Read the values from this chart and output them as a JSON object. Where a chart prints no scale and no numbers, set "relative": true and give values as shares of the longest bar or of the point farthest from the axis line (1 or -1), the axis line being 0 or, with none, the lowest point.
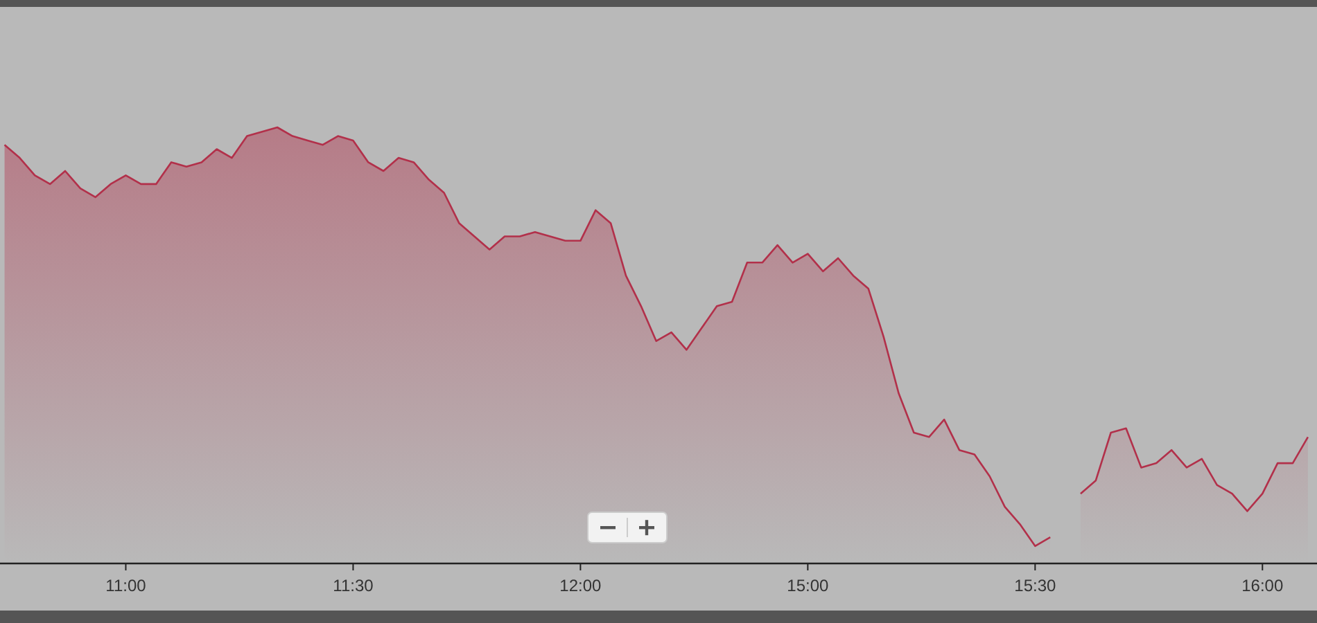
{
  "chart_data": {
    "type": "area",
    "relative": true,
    "categories": [
      null,
      null,
      null,
      null,
      null,
      null,
      null,
      null,
      "11:00",
      null,
      null,
      null,
      null,
      null,
      null,
      null,
      null,
      null,
      null,
      null,
      null,
      null,
      null,
      "11:30",
      null,
      null,
      null,
      null,
      null,
      null,
      null,
      null,
      null,
      null,
      null,
      null,
      null,
      null,
      "12:00",
      null,
      null,
      null,
      null,
      null,
      null,
      null,
      null,
      null,
      null,
      null,
      null,
      null,
      null,
      "15:00",
      null,
      null,
      null,
      null,
      null,
      null,
      null,
      null,
      null,
      null,
      null,
      null,
      null,
      null,
      "15:30",
      null,
      null,
      null,
      null,
      null,
      null,
      null,
      null,
      null,
      null,
      null,
      null,
      null,
      null,
      "16:00",
      null,
      null,
      null
    ],
    "series": [
      {
        "color": "#b2304a",
        "values": [
          0.96,
          0.93,
          0.89,
          0.87,
          0.9,
          0.86,
          0.84,
          0.87,
          0.89,
          0.87,
          0.87,
          0.92,
          0.91,
          0.92,
          0.95,
          0.93,
          0.98,
          0.99,
          1,
          0.98,
          0.97,
          0.96,
          0.98,
          0.97,
          0.92,
          0.9,
          0.93,
          0.92,
          0.88,
          0.85,
          0.78,
          0.75,
          0.72,
          0.75,
          0.75,
          0.76,
          0.75,
          0.74,
          0.74,
          0.81,
          0.78,
          0.66,
          0.59,
          0.51,
          0.53,
          0.49,
          0.54,
          0.59,
          0.6,
          0.69,
          0.69,
          0.73,
          0.69,
          0.71,
          0.67,
          0.7,
          0.66,
          0.63,
          0.52,
          0.39,
          0.3,
          0.29,
          0.33,
          0.26,
          0.25,
          0.2,
          0.13,
          0.09,
          0.04,
          0.06,
          null,
          0.16,
          0.19,
          0.3,
          0.31,
          0.22,
          0.23,
          0.26,
          0.22,
          0.24,
          0.18,
          0.16,
          0.12,
          0.16,
          0.23,
          0.23,
          0.29
        ]
      }
    ]
  }
}
